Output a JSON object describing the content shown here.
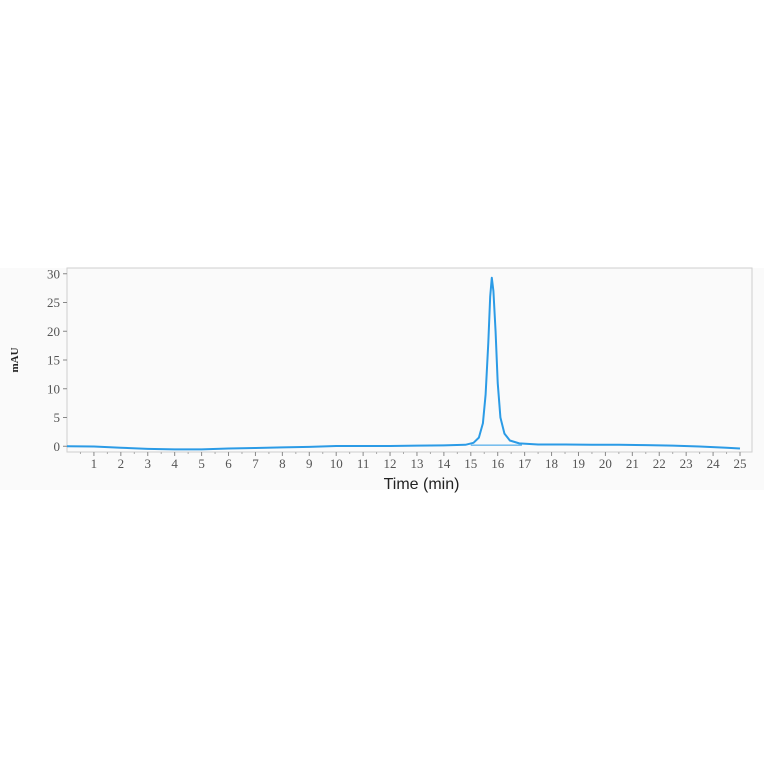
{
  "chart_data": {
    "type": "line",
    "title": "",
    "xlabel": "Time (min)",
    "ylabel": "mAU",
    "xlim": [
      0,
      25
    ],
    "ylim": [
      -1,
      31
    ],
    "x_ticks": [
      1,
      2,
      3,
      4,
      5,
      6,
      7,
      8,
      9,
      10,
      11,
      12,
      13,
      14,
      15,
      16,
      17,
      18,
      19,
      20,
      21,
      22,
      23,
      24,
      25
    ],
    "y_ticks": [
      0,
      5,
      10,
      15,
      20,
      25,
      30
    ],
    "grid": false,
    "legend": "none",
    "series": [
      {
        "color": "#2b9be6",
        "points": [
          [
            0,
            0
          ],
          [
            1,
            -0.05
          ],
          [
            2,
            -0.25
          ],
          [
            3,
            -0.45
          ],
          [
            4,
            -0.55
          ],
          [
            5,
            -0.55
          ],
          [
            6,
            -0.4
          ],
          [
            7,
            -0.3
          ],
          [
            8,
            -0.2
          ],
          [
            9,
            -0.1
          ],
          [
            10,
            0.05
          ],
          [
            11,
            0.05
          ],
          [
            12,
            0.05
          ],
          [
            13,
            0.1
          ],
          [
            14,
            0.15
          ],
          [
            14.8,
            0.25
          ],
          [
            15.1,
            0.6
          ],
          [
            15.3,
            1.5
          ],
          [
            15.45,
            4
          ],
          [
            15.55,
            9
          ],
          [
            15.65,
            18
          ],
          [
            15.72,
            26
          ],
          [
            15.78,
            29.3
          ],
          [
            15.84,
            27
          ],
          [
            15.92,
            20
          ],
          [
            16.0,
            11
          ],
          [
            16.1,
            5
          ],
          [
            16.25,
            2.2
          ],
          [
            16.45,
            1
          ],
          [
            16.8,
            0.5
          ],
          [
            17.5,
            0.3
          ],
          [
            18.5,
            0.3
          ],
          [
            19.5,
            0.25
          ],
          [
            20.5,
            0.25
          ],
          [
            21.5,
            0.2
          ],
          [
            22.5,
            0.1
          ],
          [
            23.5,
            -0.05
          ],
          [
            24.5,
            -0.25
          ],
          [
            25,
            -0.4
          ]
        ]
      }
    ],
    "peak_baseline": {
      "x_start": 15.0,
      "x_end": 16.9,
      "y": 0.2
    }
  }
}
